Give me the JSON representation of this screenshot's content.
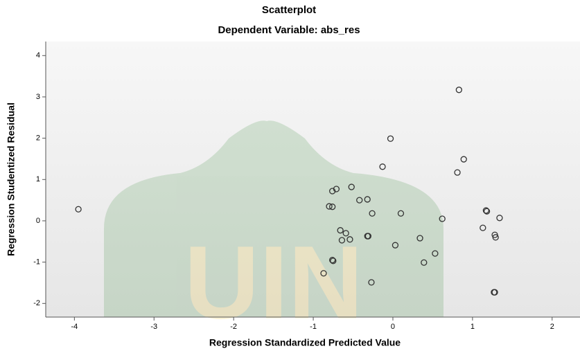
{
  "chart_data": {
    "type": "scatter",
    "title": "Scatterplot",
    "subtitle": "Dependent Variable: abs_res",
    "xlabel": "Regression Standardized Predicted Value",
    "ylabel": "Regression Studentized Residual",
    "x": [
      -3.95,
      0.83,
      -0.03,
      -0.13,
      0.89,
      0.81,
      -0.52,
      -0.71,
      -0.76,
      -0.32,
      -0.42,
      -0.8,
      -0.76,
      -0.26,
      0.1,
      1.17,
      1.18,
      0.62,
      1.34,
      1.13,
      -0.66,
      -0.59,
      -0.32,
      -0.31,
      1.28,
      1.29,
      0.34,
      -0.54,
      -0.64,
      0.03,
      0.53,
      -0.76,
      -0.75,
      0.39,
      -0.87,
      -0.27,
      1.27,
      1.28
    ],
    "values": [
      0.28,
      3.17,
      1.99,
      1.31,
      1.49,
      1.17,
      0.82,
      0.77,
      0.72,
      0.52,
      0.5,
      0.35,
      0.34,
      0.18,
      0.18,
      0.25,
      0.23,
      0.05,
      0.07,
      -0.17,
      -0.23,
      -0.3,
      -0.37,
      -0.37,
      -0.34,
      -0.4,
      -0.42,
      -0.45,
      -0.47,
      -0.59,
      -0.79,
      -0.95,
      -0.97,
      -1.01,
      -1.27,
      -1.49,
      -1.73,
      -1.73
    ],
    "color": "#333333",
    "xlim": [
      -4.36,
      2.35
    ],
    "xticks": [
      -4,
      -3,
      -2,
      -1,
      0,
      1,
      2
    ],
    "ylim": [
      -2.33,
      4.34
    ],
    "yticks": [
      -2,
      -1,
      0,
      1,
      2,
      3,
      4
    ]
  }
}
